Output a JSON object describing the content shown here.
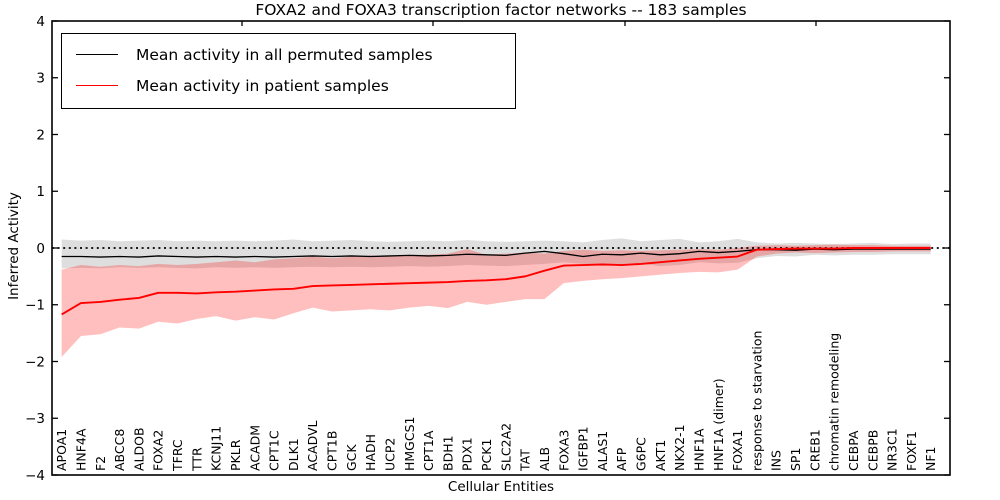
{
  "title": "FOXA2 and FOXA3 transcription factor networks -- 183 samples",
  "chart_data": {
    "type": "line",
    "title": "FOXA2 and FOXA3 transcription factor networks -- 183 samples",
    "xlabel": "Cellular Entities",
    "ylabel": "Inferred Activity",
    "ylim": [
      -4,
      4
    ],
    "yticks": [
      "-4",
      "-3",
      "-2",
      "-1",
      "0",
      "1",
      "2",
      "3",
      "4"
    ],
    "grid": false,
    "zero_reference_line": true,
    "legend_position": "upper left",
    "categories": [
      "APOA1",
      "HNF4A",
      "F2",
      "ABCC8",
      "ALDOB",
      "FOXA2",
      "TFRC",
      "TTR",
      "KCNJ11",
      "PKLR",
      "ACADM",
      "CPT1C",
      "DLK1",
      "ACADVL",
      "CPT1B",
      "GCK",
      "HADH",
      "UCP2",
      "HMGCS1",
      "CPT1A",
      "BDH1",
      "PDX1",
      "PCK1",
      "SLC2A2",
      "TAT",
      "ALB",
      "FOXA3",
      "IGFBP1",
      "ALAS1",
      "AFP",
      "G6PC",
      "AKT1",
      "NKX2-1",
      "HNF1A",
      "HNF1A (dimer)",
      "FOXA1",
      "response to starvation",
      "INS",
      "SP1",
      "CREB1",
      "chromatin remodeling",
      "CEBPA",
      "CEBPB",
      "NR3C1",
      "FOXF1",
      "NF1"
    ],
    "series": [
      {
        "name": "Mean activity in all permuted samples",
        "color": "#000000",
        "band_color": "rgba(0,0,0,0.13)",
        "values": [
          -0.15,
          -0.15,
          -0.16,
          -0.15,
          -0.16,
          -0.14,
          -0.15,
          -0.16,
          -0.15,
          -0.16,
          -0.15,
          -0.16,
          -0.15,
          -0.14,
          -0.15,
          -0.14,
          -0.15,
          -0.14,
          -0.13,
          -0.14,
          -0.13,
          -0.11,
          -0.12,
          -0.13,
          -0.09,
          -0.06,
          -0.1,
          -0.15,
          -0.11,
          -0.12,
          -0.09,
          -0.12,
          -0.1,
          -0.06,
          -0.08,
          -0.06,
          -0.03,
          -0.03,
          -0.04,
          -0.02,
          -0.03,
          -0.02,
          -0.02,
          -0.02,
          -0.02,
          -0.02
        ],
        "band_upper": [
          0.15,
          0.13,
          0.14,
          0.12,
          0.13,
          0.14,
          0.12,
          0.13,
          0.12,
          0.13,
          0.12,
          0.13,
          0.15,
          0.12,
          0.13,
          0.14,
          0.12,
          0.11,
          0.12,
          0.13,
          0.12,
          0.14,
          0.12,
          0.11,
          0.12,
          0.13,
          0.12,
          0.1,
          0.14,
          0.17,
          0.12,
          0.14,
          0.16,
          0.1,
          0.12,
          0.16,
          0.1,
          0.08,
          0.09,
          0.08,
          0.07,
          0.08,
          0.09,
          0.07,
          0.08,
          0.08
        ],
        "band_lower": [
          -0.36,
          -0.35,
          -0.36,
          -0.34,
          -0.35,
          -0.34,
          -0.35,
          -0.36,
          -0.34,
          -0.35,
          -0.34,
          -0.35,
          -0.34,
          -0.33,
          -0.34,
          -0.33,
          -0.34,
          -0.33,
          -0.32,
          -0.33,
          -0.32,
          -0.3,
          -0.31,
          -0.32,
          -0.3,
          -0.28,
          -0.25,
          -0.28,
          -0.32,
          -0.3,
          -0.28,
          -0.32,
          -0.3,
          -0.25,
          -0.27,
          -0.26,
          -0.18,
          -0.14,
          -0.15,
          -0.12,
          -0.13,
          -0.12,
          -0.12,
          -0.11,
          -0.11,
          -0.11
        ]
      },
      {
        "name": "Mean activity in patient samples",
        "color": "#ff0000",
        "band_color": "rgba(255,0,0,0.25)",
        "values": [
          -1.17,
          -0.97,
          -0.95,
          -0.91,
          -0.88,
          -0.79,
          -0.79,
          -0.8,
          -0.78,
          -0.77,
          -0.75,
          -0.73,
          -0.72,
          -0.67,
          -0.66,
          -0.65,
          -0.64,
          -0.63,
          -0.62,
          -0.61,
          -0.6,
          -0.58,
          -0.57,
          -0.55,
          -0.5,
          -0.4,
          -0.31,
          -0.3,
          -0.29,
          -0.3,
          -0.28,
          -0.25,
          -0.22,
          -0.19,
          -0.17,
          -0.15,
          -0.03,
          -0.02,
          -0.01,
          -0.01,
          -0.01,
          0,
          0,
          0,
          0,
          0
        ],
        "band_upper": [
          -0.38,
          -0.3,
          -0.33,
          -0.3,
          -0.32,
          -0.28,
          -0.3,
          -0.28,
          -0.25,
          -0.22,
          -0.25,
          -0.2,
          -0.18,
          -0.15,
          -0.18,
          -0.15,
          -0.13,
          -0.15,
          -0.12,
          -0.12,
          -0.1,
          -0.02,
          -0.12,
          -0.1,
          -0.08,
          -0.1,
          -0.05,
          -0.03,
          -0.05,
          -0.04,
          -0.05,
          -0.04,
          -0.03,
          -0.02,
          -0.03,
          0,
          0.04,
          0.05,
          0.04,
          0.05,
          0.06,
          0.05,
          0.05,
          0.04,
          0.04,
          0.04
        ],
        "band_lower": [
          -1.92,
          -1.55,
          -1.52,
          -1.4,
          -1.42,
          -1.3,
          -1.33,
          -1.25,
          -1.2,
          -1.28,
          -1.22,
          -1.26,
          -1.15,
          -1.05,
          -1.12,
          -1.1,
          -1.08,
          -1.1,
          -1.05,
          -1.02,
          -1.06,
          -0.95,
          -1.0,
          -0.95,
          -0.9,
          -0.9,
          -0.62,
          -0.58,
          -0.55,
          -0.53,
          -0.5,
          -0.47,
          -0.44,
          -0.42,
          -0.43,
          -0.38,
          -0.15,
          -0.1,
          -0.08,
          -0.09,
          -0.08,
          -0.07,
          -0.07,
          -0.06,
          -0.06,
          -0.06
        ]
      }
    ]
  }
}
